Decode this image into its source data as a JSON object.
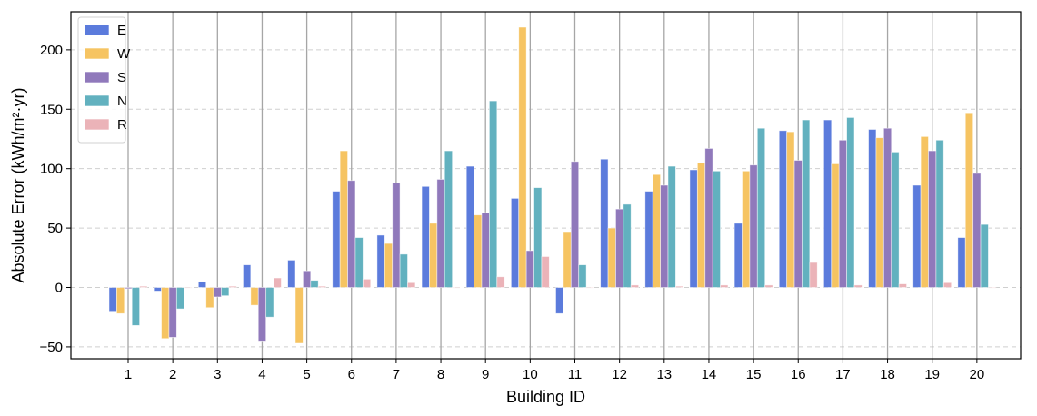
{
  "chart_data": {
    "type": "bar",
    "xlabel": "Building ID",
    "ylabel": "Absolute Error (kWh/m²·yr)",
    "ylim": [
      -60,
      232
    ],
    "yticks": [
      -50,
      0,
      50,
      100,
      150,
      200
    ],
    "ytick_labels": [
      "−50",
      "0",
      "50",
      "100",
      "150",
      "200"
    ],
    "grid": "horizontal dashed",
    "legend_position": "top-left",
    "categories": [
      "1",
      "2",
      "3",
      "4",
      "5",
      "6",
      "7",
      "8",
      "9",
      "10",
      "11",
      "12",
      "13",
      "14",
      "15",
      "16",
      "17",
      "18",
      "19",
      "20"
    ],
    "series": [
      {
        "name": "E",
        "color": "#5b7bdc",
        "values": [
          -20,
          -3,
          5,
          19,
          23,
          81,
          44,
          85,
          102,
          75,
          -22,
          108,
          81,
          99,
          54,
          132,
          141,
          133,
          86,
          42
        ]
      },
      {
        "name": "W",
        "color": "#f6c462",
        "values": [
          -22,
          -43,
          -17,
          -15,
          -47,
          115,
          37,
          54,
          61,
          219,
          47,
          50,
          95,
          105,
          98,
          131,
          104,
          126,
          127,
          147
        ]
      },
      {
        "name": "S",
        "color": "#9079bb",
        "values": [
          -1,
          -42,
          -8,
          -45,
          14,
          90,
          88,
          91,
          63,
          31,
          106,
          66,
          86,
          117,
          103,
          107,
          124,
          134,
          115,
          96
        ]
      },
      {
        "name": "N",
        "color": "#62b1bf",
        "values": [
          -32,
          -18,
          -7,
          -25,
          6,
          42,
          28,
          115,
          157,
          84,
          19,
          70,
          102,
          98,
          134,
          141,
          143,
          114,
          124,
          53
        ]
      },
      {
        "name": "R",
        "color": "#ebb3b8",
        "values": [
          1,
          0,
          1,
          8,
          1,
          7,
          4,
          0,
          9,
          26,
          0,
          2,
          1,
          2,
          2,
          21,
          2,
          3,
          4,
          0
        ]
      }
    ]
  }
}
